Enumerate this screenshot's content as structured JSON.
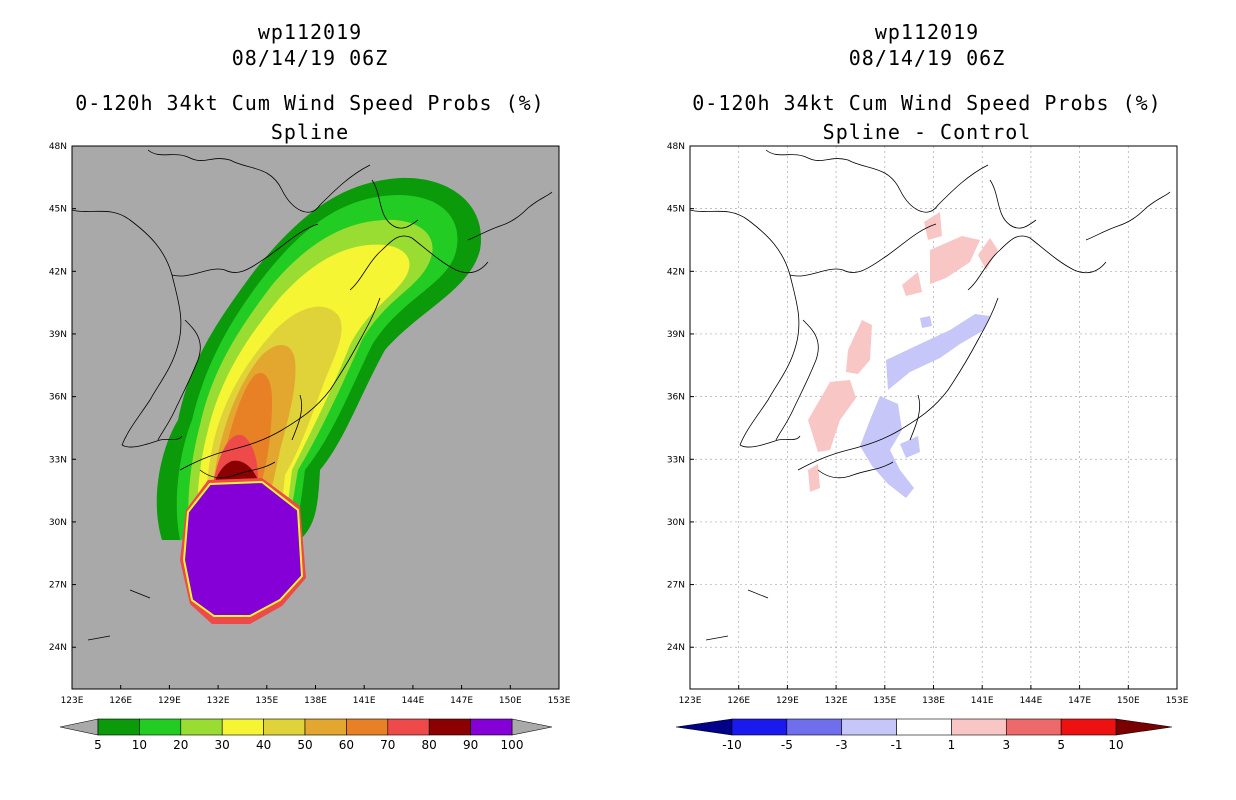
{
  "chart_data": [
    {
      "type": "heatmap",
      "title_lines": [
        "wp112019",
        "08/14/19 06Z",
        "0-120h 34kt Cum Wind Speed Probs (%)",
        "Spline"
      ],
      "x_ticks": [
        "123E",
        "126E",
        "129E",
        "132E",
        "135E",
        "138E",
        "141E",
        "144E",
        "147E",
        "150E",
        "153E"
      ],
      "y_ticks": [
        "24N",
        "27N",
        "30N",
        "33N",
        "36N",
        "39N",
        "42N",
        "45N",
        "48N"
      ],
      "xlim": [
        123,
        153
      ],
      "ylim": [
        22,
        48
      ],
      "colorbar": {
        "labels": [
          "5",
          "10",
          "20",
          "30",
          "40",
          "50",
          "60",
          "70",
          "80",
          "90",
          "100"
        ],
        "colors": [
          "#0a9a0a",
          "#22cc22",
          "#99dd33",
          "#f5f533",
          "#e0d33a",
          "#e3a62e",
          "#e88025",
          "#ee4a4a",
          "#8b0000",
          "#8400d6"
        ]
      },
      "background": "#a9a9a9"
    },
    {
      "type": "heatmap",
      "title_lines": [
        "wp112019",
        "08/14/19 06Z",
        "0-120h 34kt Cum Wind Speed Probs (%)",
        "Spline - Control"
      ],
      "x_ticks": [
        "123E",
        "126E",
        "129E",
        "132E",
        "135E",
        "138E",
        "141E",
        "144E",
        "147E",
        "150E",
        "153E"
      ],
      "y_ticks": [
        "24N",
        "27N",
        "30N",
        "33N",
        "36N",
        "39N",
        "42N",
        "45N",
        "48N"
      ],
      "xlim": [
        123,
        153
      ],
      "ylim": [
        22,
        48
      ],
      "colorbar": {
        "labels": [
          "-10",
          "-5",
          "-3",
          "-1",
          "1",
          "3",
          "5",
          "10"
        ],
        "colors": [
          "#00008b",
          "#1a1aee",
          "#6f6fee",
          "#c6c6f9",
          "#ffffff",
          "#f9c6c6",
          "#ee6a6a",
          "#ee1111",
          "#7a0000"
        ]
      },
      "background": "#ffffff"
    }
  ]
}
